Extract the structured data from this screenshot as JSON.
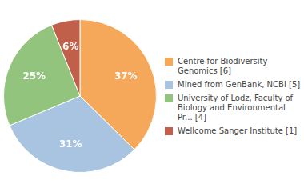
{
  "chart_data": {
    "type": "pie",
    "categories": [
      "Centre for Biodiversity\nGenomics [6]",
      "Mined from GenBank, NCBI [5]",
      "University of Lodz, Faculty of\nBiology and Environmental\nPr... [4]",
      "Wellcome Sanger Institute [1]"
    ],
    "values": [
      37,
      31,
      25,
      6
    ],
    "value_labels": [
      "37%",
      "31%",
      "25%",
      "6%"
    ],
    "colors": [
      "#F5A85A",
      "#A8C4E0",
      "#93C47D",
      "#C0604A"
    ],
    "data_labels": true,
    "legend": "right"
  }
}
